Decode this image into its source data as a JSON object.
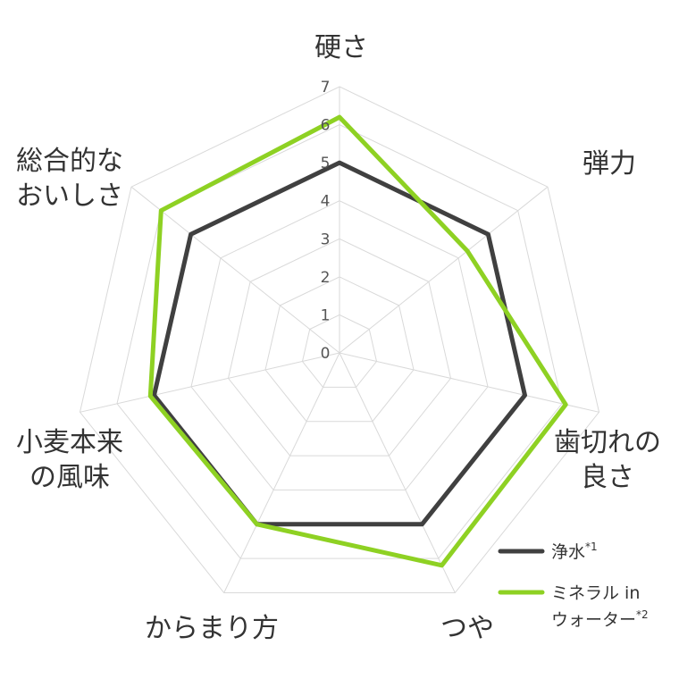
{
  "chart_data": {
    "type": "radar",
    "axes": [
      "硬さ",
      "弾力",
      "歯切れの良さ",
      "つや",
      "からまり方",
      "小麦本来の風味",
      "総合的なおいしさ"
    ],
    "axis_label_lines": [
      [
        "硬さ"
      ],
      [
        "弾力"
      ],
      [
        "歯切れの",
        "良さ"
      ],
      [
        "つや"
      ],
      [
        "からまり方"
      ],
      [
        "小麦本来",
        "の風味"
      ],
      [
        "総合的な",
        "おいしさ"
      ]
    ],
    "ticks": [
      "0",
      "1",
      "2",
      "3",
      "4",
      "5",
      "6",
      "7"
    ],
    "range": [
      0,
      7
    ],
    "grid": true,
    "legend_position": "bottom-right",
    "series": [
      {
        "name": "浄水",
        "sup": "*1",
        "color": "#404040",
        "values": [
          5,
          5,
          5,
          5,
          5,
          5,
          5
        ]
      },
      {
        "name": "ミネラル in ウォーター",
        "name_lines": [
          "ミネラル in",
          "ウォーター"
        ],
        "sup": "*2",
        "color": "#8ed123",
        "values": [
          6.2,
          4.3,
          6.1,
          6.2,
          5.0,
          5.1,
          6.0
        ]
      }
    ]
  }
}
